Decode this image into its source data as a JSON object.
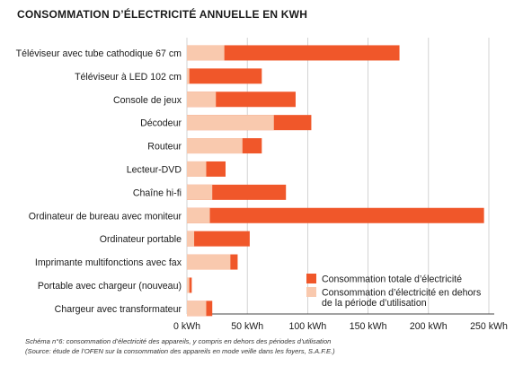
{
  "chart_data": {
    "type": "bar",
    "orientation": "horizontal",
    "stacked": "overlay",
    "title": "CONSOMMATION D’ÉLECTRICITÉ ANNUELLE EN KWH",
    "categories": [
      "Téléviseur avec tube cathodique 67 cm",
      "Téléviseur à LED 102 cm",
      "Console de jeux",
      "Décodeur",
      "Routeur",
      "Lecteur-DVD",
      "Chaîne hi-fi",
      "Ordinateur de bureau avec moniteur",
      "Ordinateur portable",
      "Imprimante multifonctions avec fax",
      "Portable avec chargeur (nouveau)",
      "Chargeur avec transformateur"
    ],
    "series": [
      {
        "name": "Consommation totale d’électricité",
        "color": "#f0572a",
        "values": [
          176,
          62,
          90,
          103,
          62,
          32,
          82,
          246,
          52,
          42,
          4,
          21
        ]
      },
      {
        "name": "Consommation d’électricité en dehors de la période d’utilisation",
        "color": "#f9c9ae",
        "values": [
          31,
          2,
          24,
          72,
          46,
          16,
          21,
          19,
          6,
          36,
          2,
          16
        ]
      }
    ],
    "xticks": [
      "0 kWh",
      "50 kWh",
      "100 kWh",
      "150 kWh",
      "200 kWh",
      "250 kWh"
    ],
    "xlim": [
      0,
      250
    ],
    "xlabel": "",
    "ylabel": "",
    "grid": "vertical",
    "legend_position": "bottom-right",
    "legend_entries": [
      "Consommation totale d’électricité",
      [
        "Consommation d’électricité en dehors",
        "de la période d’utilisation"
      ]
    ]
  },
  "caption": {
    "line1": "Schéma n°6: consommation d’électricité des appareils, y compris en dehors des périodes d’utilisation",
    "line2": "(Source: étude de l’OFEN sur la consommation des appareils en mode veille dans les foyers, S.A.F.E.)"
  }
}
